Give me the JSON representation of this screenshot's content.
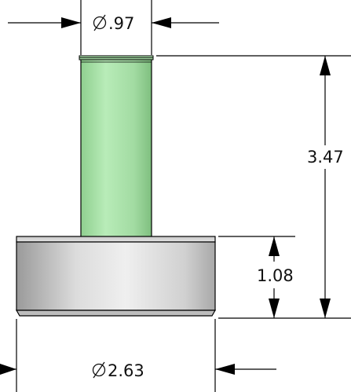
{
  "dimensions": {
    "stem_diameter": {
      "symbol": "Ø",
      "value": ".97"
    },
    "total_height": {
      "value": "3.47"
    },
    "base_height": {
      "value": "1.08"
    },
    "base_diameter": {
      "symbol": "Ø",
      "value": "2.63"
    }
  },
  "colors": {
    "stem": "#a6dea6",
    "base": "#d6d6d6",
    "outline": "#000000"
  }
}
